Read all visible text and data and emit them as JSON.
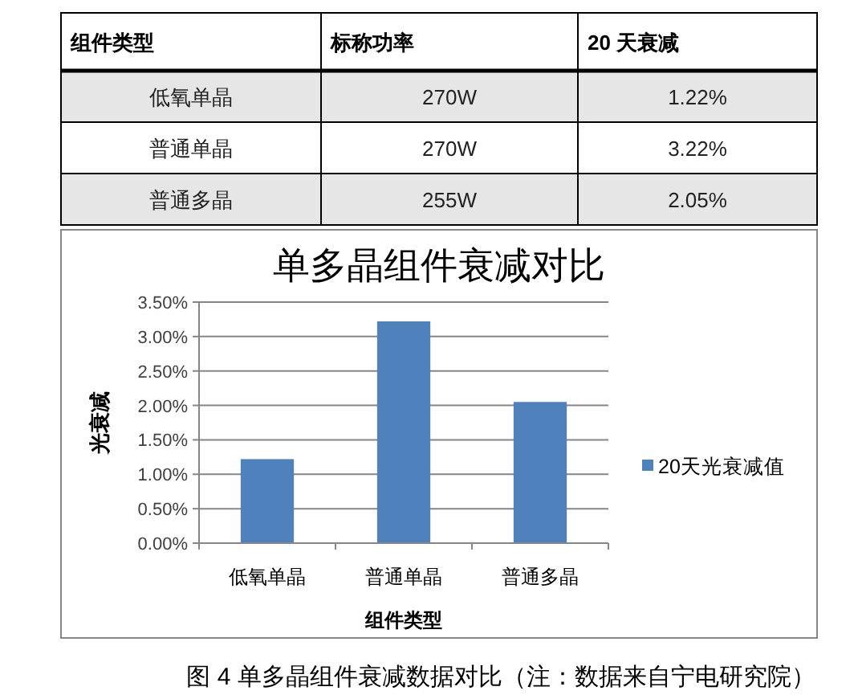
{
  "chart_data": [
    {
      "type": "other",
      "categories": [
        "组件类型",
        "标称功率",
        "20 天衰减"
      ],
      "cell_labels": [
        [
          "低氧单晶",
          "270W",
          "1.22%"
        ],
        [
          "普通单晶",
          "270W",
          "3.22%"
        ],
        [
          "普通多晶",
          "255W",
          "2.05%"
        ]
      ]
    },
    {
      "type": "bar",
      "title": "单多晶组件衰减对比",
      "xlabel": "组件类型",
      "ylabel": "光衰减",
      "categories": [
        "低氧单晶",
        "普通单晶",
        "普通多晶"
      ],
      "series": [
        {
          "name": "20天光衰减值",
          "color": "#4f81bd",
          "values": [
            1.22,
            3.22,
            2.05
          ]
        }
      ],
      "ylim": [
        0,
        3.5
      ],
      "yticks": [
        {
          "value": 0,
          "label": "0.00%"
        },
        {
          "value": 0.5,
          "label": "0.50%"
        },
        {
          "value": 1,
          "label": "1.00%"
        },
        {
          "value": 1.5,
          "label": "1.50%"
        },
        {
          "value": 2,
          "label": "2.00%"
        },
        {
          "value": 2.5,
          "label": "2.50%"
        },
        {
          "value": 3,
          "label": "3.00%"
        },
        {
          "value": 3.5,
          "label": "3.50%"
        }
      ],
      "grid": "y",
      "legend": "right",
      "annotations": [
        "图 4 单多晶组件衰减数据对比（注：数据来自宁电研究院）"
      ]
    }
  ]
}
